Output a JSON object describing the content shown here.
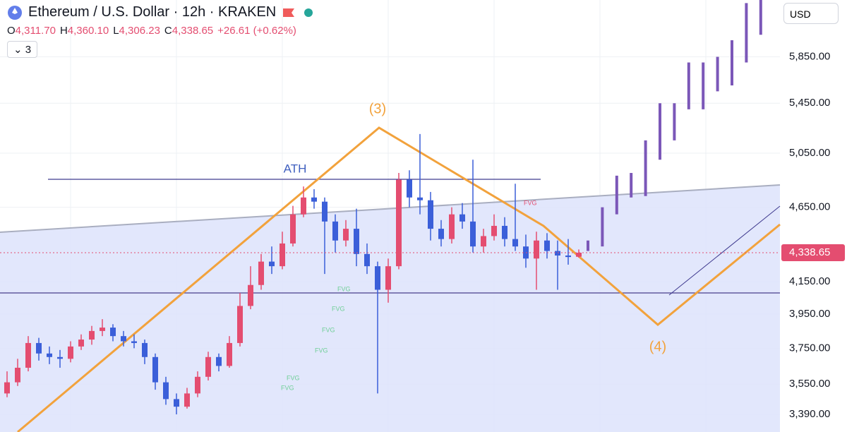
{
  "header": {
    "title": "Ethereum / U.S. Dollar · 12h · KRAKEN",
    "ohlc": [
      {
        "key": "O",
        "value": "4,311.70"
      },
      {
        "key": "H",
        "value": "4,360.10"
      },
      {
        "key": "L",
        "value": "4,306.23"
      },
      {
        "key": "C",
        "value": "4,338.65"
      }
    ],
    "change": "+26.61 (+0.62%)",
    "indicators": "3"
  },
  "currency": "USD",
  "chart_data": {
    "type": "candlestick",
    "log_scale": true,
    "ylim": [
      3300,
      6380
    ],
    "yticks": [
      {
        "value": 3390,
        "label": "3,390.00"
      },
      {
        "value": 3550,
        "label": "3,550.00"
      },
      {
        "value": 3750,
        "label": "3,750.00"
      },
      {
        "value": 3950,
        "label": "3,950.00"
      },
      {
        "value": 4150,
        "label": "4,150.00"
      },
      {
        "value": 4650,
        "label": "4,650.00"
      },
      {
        "value": 5050,
        "label": "5,050.00"
      },
      {
        "value": 5450,
        "label": "5,450.00"
      },
      {
        "value": 5850,
        "label": "5,850.00"
      }
    ],
    "grid": true,
    "up_color": "#e44d70",
    "down_color": "#3b5fd9",
    "projection_color": "#7b57b8",
    "last_price": {
      "value": 4338.65,
      "label": "4,338.65"
    },
    "candles": [
      [
        3500,
        3620,
        3480,
        3560
      ],
      [
        3560,
        3690,
        3540,
        3640
      ],
      [
        3640,
        3820,
        3620,
        3780
      ],
      [
        3780,
        3810,
        3680,
        3720
      ],
      [
        3720,
        3760,
        3660,
        3700
      ],
      [
        3700,
        3740,
        3640,
        3690
      ],
      [
        3690,
        3790,
        3670,
        3760
      ],
      [
        3760,
        3830,
        3740,
        3800
      ],
      [
        3800,
        3880,
        3770,
        3850
      ],
      [
        3850,
        3920,
        3820,
        3870
      ],
      [
        3870,
        3890,
        3790,
        3820
      ],
      [
        3820,
        3850,
        3760,
        3790
      ],
      [
        3790,
        3830,
        3750,
        3780
      ],
      [
        3780,
        3800,
        3660,
        3700
      ],
      [
        3700,
        3720,
        3520,
        3560
      ],
      [
        3560,
        3590,
        3440,
        3470
      ],
      [
        3470,
        3500,
        3390,
        3430
      ],
      [
        3430,
        3530,
        3420,
        3500
      ],
      [
        3500,
        3620,
        3480,
        3590
      ],
      [
        3590,
        3730,
        3570,
        3700
      ],
      [
        3700,
        3720,
        3620,
        3650
      ],
      [
        3650,
        3820,
        3640,
        3780
      ],
      [
        3780,
        4080,
        3760,
        4000
      ],
      [
        4000,
        4250,
        3980,
        4130
      ],
      [
        4130,
        4330,
        4100,
        4280
      ],
      [
        4280,
        4380,
        4200,
        4250
      ],
      [
        4250,
        4480,
        4230,
        4400
      ],
      [
        4400,
        4660,
        4380,
        4600
      ],
      [
        4600,
        4800,
        4580,
        4720
      ],
      [
        4720,
        4780,
        4640,
        4690
      ],
      [
        4690,
        4720,
        4200,
        4550
      ],
      [
        4550,
        4600,
        4340,
        4420
      ],
      [
        4420,
        4560,
        4380,
        4500
      ],
      [
        4500,
        4640,
        4250,
        4330
      ],
      [
        4330,
        4400,
        4200,
        4250
      ],
      [
        4250,
        4280,
        3500,
        4100
      ],
      [
        4100,
        4300,
        4020,
        4250
      ],
      [
        4250,
        4900,
        4230,
        4850
      ],
      [
        4850,
        4920,
        4650,
        4720
      ],
      [
        4720,
        5200,
        4600,
        4700
      ],
      [
        4700,
        4760,
        4420,
        4500
      ],
      [
        4500,
        4560,
        4380,
        4430
      ],
      [
        4430,
        4650,
        4400,
        4600
      ],
      [
        4600,
        4680,
        4500,
        4550
      ],
      [
        4550,
        5000,
        4340,
        4380
      ],
      [
        4380,
        4500,
        4340,
        4450
      ],
      [
        4450,
        4600,
        4420,
        4520
      ],
      [
        4520,
        4580,
        4380,
        4430
      ],
      [
        4430,
        4820,
        4350,
        4380
      ],
      [
        4380,
        4460,
        4240,
        4300
      ],
      [
        4300,
        4480,
        4100,
        4420
      ],
      [
        4420,
        4470,
        4300,
        4350
      ],
      [
        4350,
        4420,
        4100,
        4320
      ],
      [
        4320,
        4430,
        4260,
        4310
      ],
      [
        4311.7,
        4360.1,
        4306.23,
        4338.65
      ]
    ],
    "projection": [
      [
        4350,
        4420
      ],
      [
        4380,
        4650
      ],
      [
        4600,
        4880
      ],
      [
        4720,
        4900
      ],
      [
        4730,
        5150
      ],
      [
        5000,
        5450
      ],
      [
        5150,
        5450
      ],
      [
        5400,
        5800
      ],
      [
        5400,
        5800
      ],
      [
        5550,
        5850
      ],
      [
        5600,
        6000
      ],
      [
        5800,
        6350
      ],
      [
        6050,
        6380
      ]
    ],
    "annotations": {
      "wave3": "(3)",
      "wave4": "(4)",
      "ath": "ATH",
      "fvg": "FVG"
    }
  }
}
